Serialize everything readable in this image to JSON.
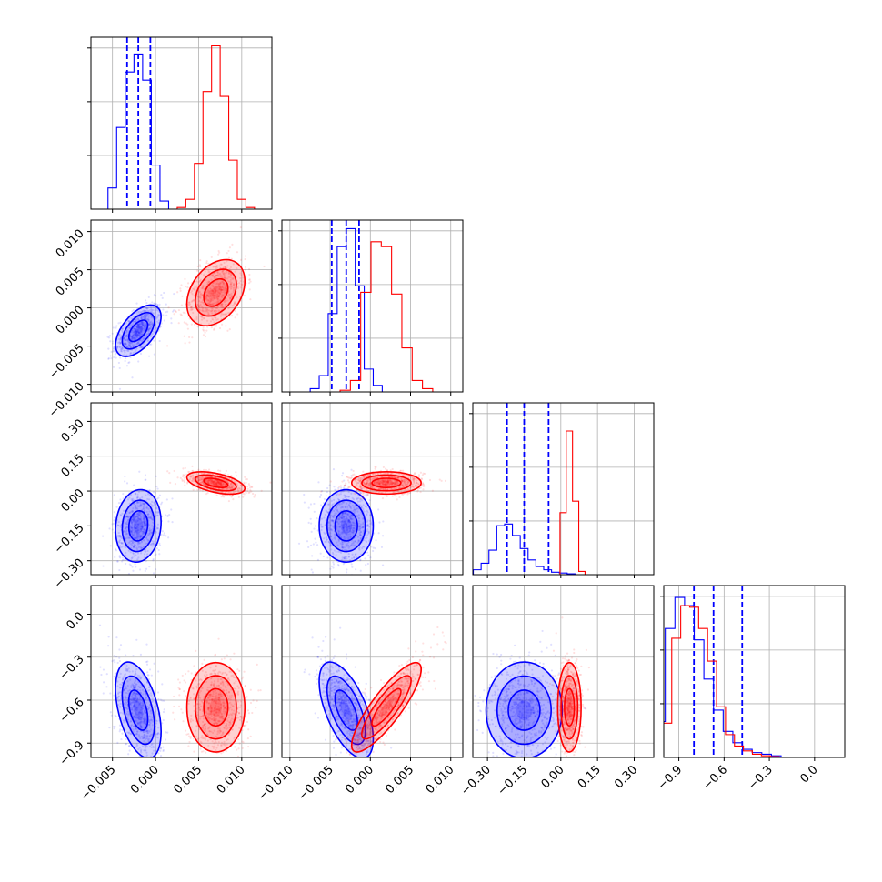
{
  "colors": {
    "series_a": "#0000ff",
    "series_b": "#ff0000",
    "grid": "#b0b0b0",
    "frame": "#000000"
  },
  "chart_data": {
    "type": "corner",
    "title": "",
    "legend": "none",
    "grid": true,
    "variables": [
      {
        "range": [
          -0.0075,
          0.0135
        ],
        "ticks": [
          -0.005,
          0.0,
          0.005,
          0.01
        ],
        "tick_labels": [
          "−0.005",
          "0.000",
          "0.005",
          "0.010"
        ]
      },
      {
        "range": [
          -0.011,
          0.0115
        ],
        "ticks": [
          -0.01,
          -0.005,
          0.0,
          0.005,
          0.01
        ],
        "tick_labels": [
          "−0.010",
          "−0.005",
          "0.000",
          "0.005",
          "0.010"
        ]
      },
      {
        "range": [
          -0.36,
          0.38
        ],
        "ticks": [
          -0.3,
          -0.15,
          0.0,
          0.15,
          0.3
        ],
        "tick_labels": [
          "−0.30",
          "−0.15",
          "0.00",
          "0.15",
          "0.30"
        ]
      },
      {
        "range": [
          -1.0,
          0.2
        ],
        "ticks": [
          -0.9,
          -0.6,
          -0.3,
          0.0
        ],
        "tick_labels": [
          "−0.9",
          "−0.6",
          "−0.3",
          "0.0"
        ]
      }
    ],
    "series": [
      {
        "color": "#0000ff",
        "quantiles": [
          [
            -0.0033,
            -0.002,
            -0.0006
          ],
          [
            -0.0048,
            -0.003,
            -0.0014
          ],
          [
            -0.22,
            -0.15,
            -0.05
          ],
          [
            -0.8,
            -0.67,
            -0.48
          ]
        ],
        "hist": [
          [
            0.13,
            0.5,
            0.84,
            0.95,
            0.79,
            0.27,
            0.05
          ],
          [
            0.02,
            0.1,
            0.48,
            0.89,
            1.0,
            0.65,
            0.14,
            0.04
          ],
          [
            0.03,
            0.07,
            0.15,
            0.3,
            0.31,
            0.24,
            0.16,
            0.09,
            0.05,
            0.03,
            0.015,
            0.01,
            0.005
          ],
          [
            0.04,
            0.22,
            0.79,
            0.98,
            0.93,
            0.72,
            0.48,
            0.29,
            0.16,
            0.09,
            0.05,
            0.03,
            0.02,
            0.01
          ]
        ],
        "centers": [
          -0.002,
          -0.003,
          -0.15,
          -0.67
        ],
        "sigmas": [
          0.0011,
          0.0014,
          0.065,
          0.14
        ],
        "correlations": {
          "0-1": 0.55,
          "0-2": 0.1,
          "1-2": 0.0,
          "0-3": -0.45,
          "1-3": -0.6,
          "2-3": 0.0
        }
      },
      {
        "color": "#ff0000",
        "quantiles": [],
        "hist": [
          [
            0.01,
            0.06,
            0.28,
            0.72,
            1.0,
            0.69,
            0.3,
            0.06,
            0.01
          ],
          [
            0.01,
            0.07,
            0.61,
            0.92,
            0.89,
            0.6,
            0.27,
            0.07,
            0.02
          ],
          [
            0.0,
            0.38,
            0.88,
            0.45,
            0.02
          ],
          [
            0.04,
            0.21,
            0.73,
            0.93,
            0.92,
            0.79,
            0.59,
            0.31,
            0.14,
            0.07,
            0.04,
            0.02,
            0.01,
            0.005
          ]
        ],
        "centers": [
          0.007,
          0.002,
          0.035,
          -0.65
        ],
        "sigmas": [
          0.0014,
          0.0018,
          0.02,
          0.13
        ],
        "correlations": {
          "0-1": 0.35,
          "0-2": -0.5,
          "1-2": 0.0,
          "0-3": 0.0,
          "1-3": 0.85,
          "2-3": 0.0
        }
      }
    ]
  }
}
